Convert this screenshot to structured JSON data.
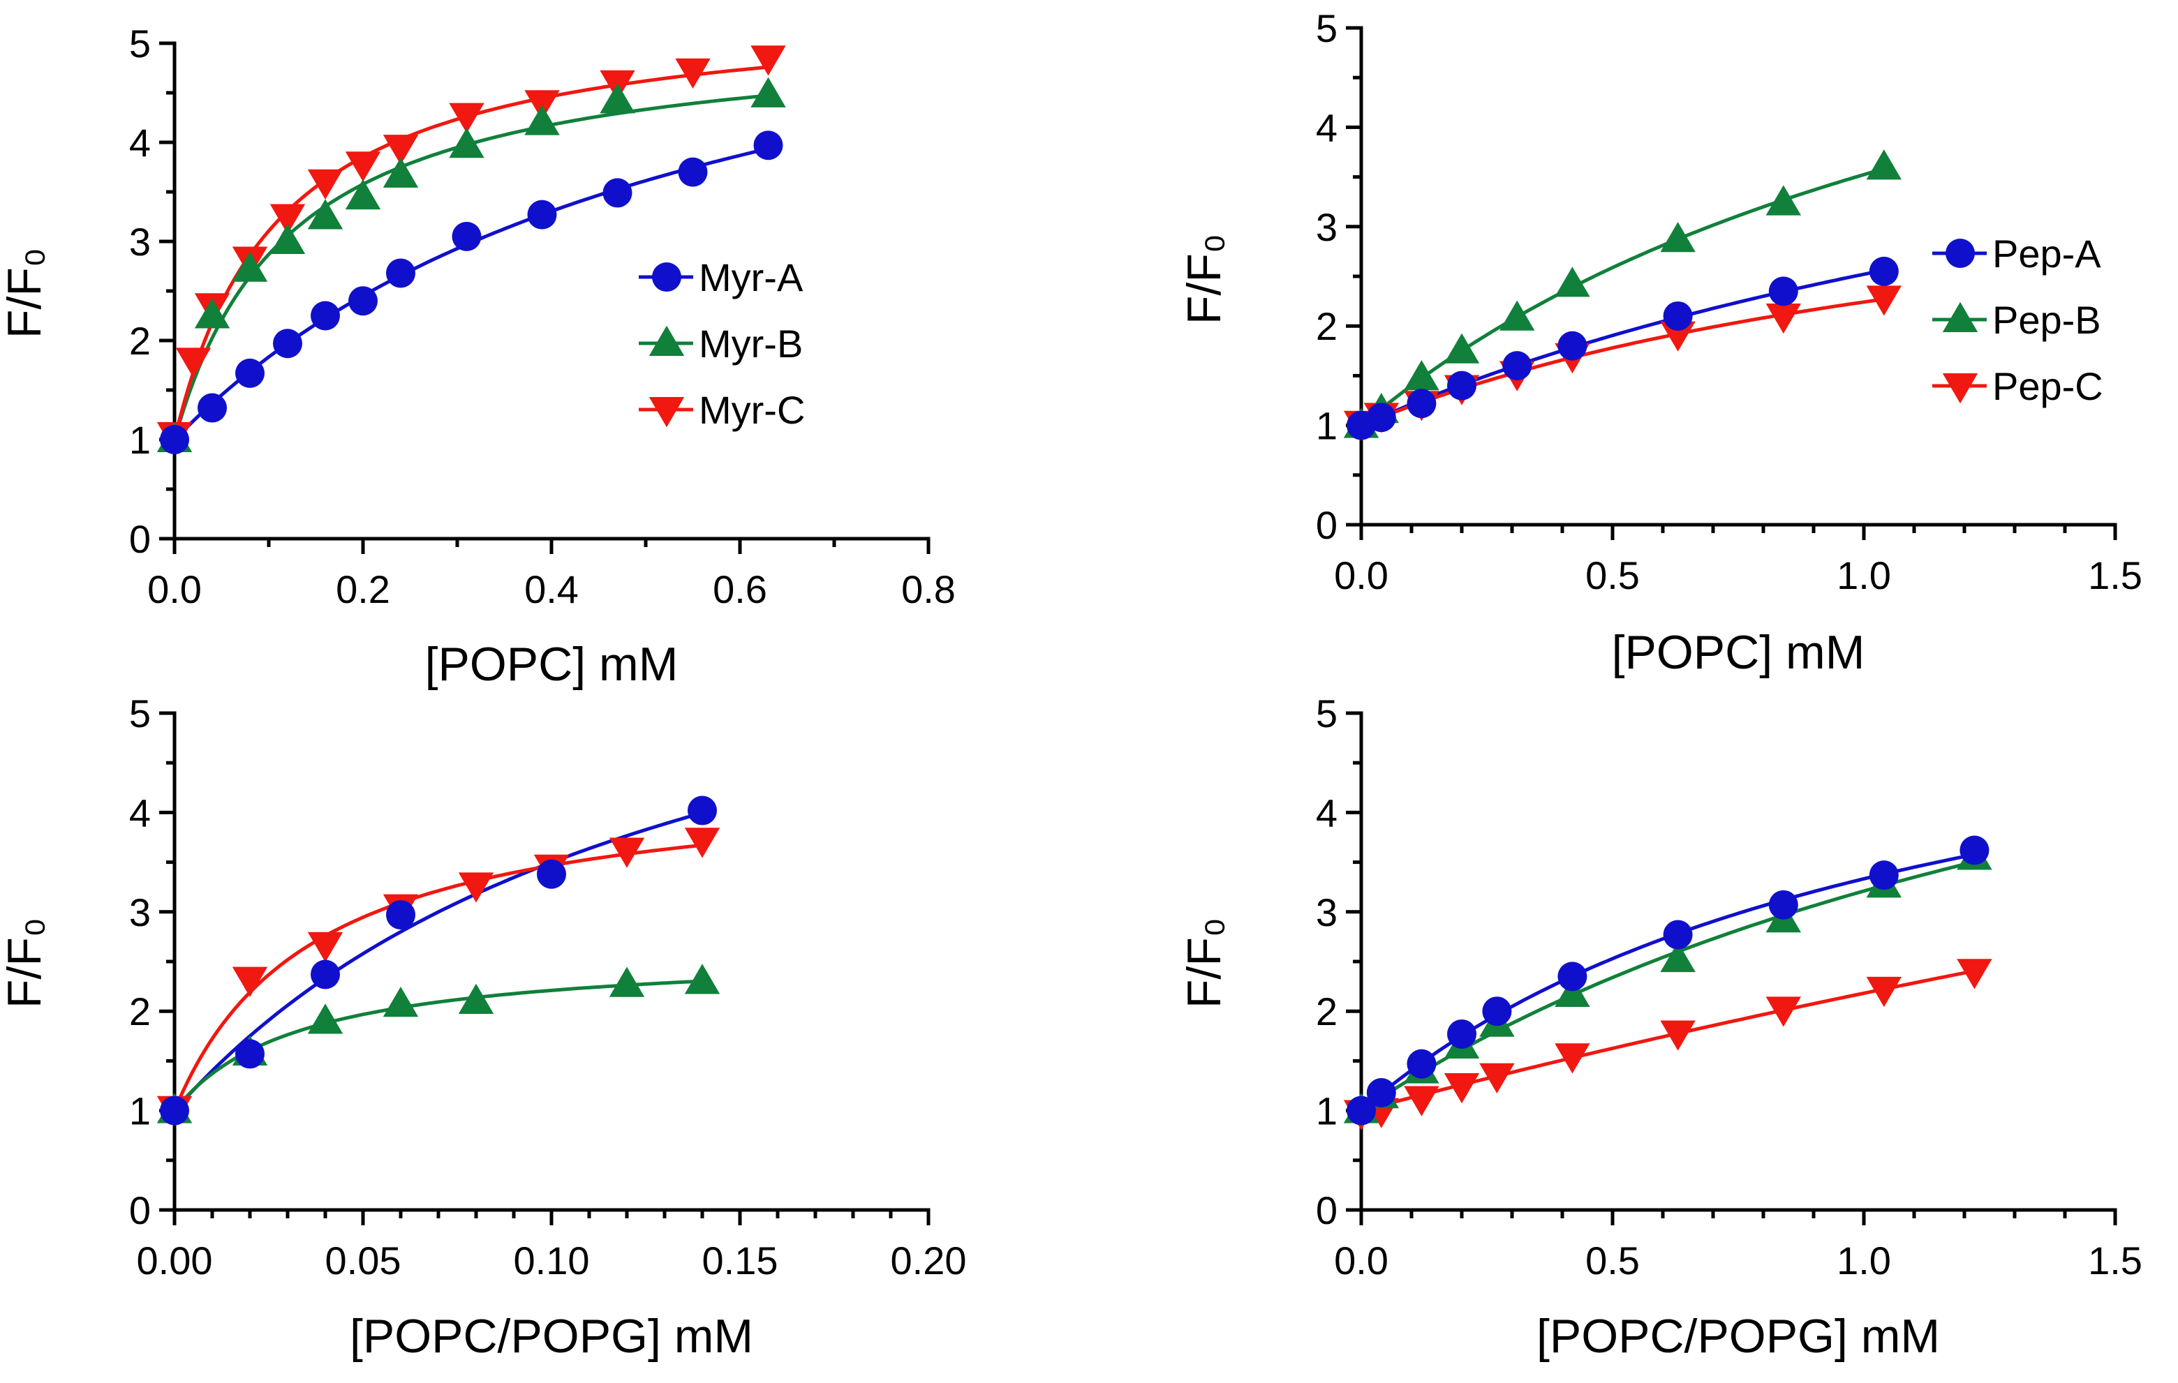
{
  "colors": {
    "A": "#1010cc",
    "B": "#10803a",
    "C": "#f01810"
  },
  "chart_data": [
    {
      "type": "scatter",
      "id": "p1",
      "xlabel": "[POPC] mM",
      "ylabel": "F/F₀",
      "xlim": [
        0,
        0.8
      ],
      "ylim": [
        0,
        5
      ],
      "xticks": [
        "0.0",
        "0.2",
        "0.4",
        "0.6",
        "0.8"
      ],
      "yticks": [
        "0",
        "1",
        "2",
        "3",
        "4",
        "5"
      ],
      "legend_position": "middle-right",
      "series": [
        {
          "name": "Myr-A",
          "color": "#1010cc",
          "marker": "circle",
          "x": [
            0,
            0.04,
            0.08,
            0.12,
            0.16,
            0.2,
            0.24,
            0.31,
            0.39,
            0.47,
            0.55,
            0.63
          ],
          "y": [
            1.0,
            1.32,
            1.67,
            1.97,
            2.25,
            2.4,
            2.68,
            3.05,
            3.27,
            3.49,
            3.7,
            3.97
          ]
        },
        {
          "name": "Myr-B",
          "color": "#10803a",
          "marker": "triangle-up",
          "x": [
            0,
            0.04,
            0.08,
            0.12,
            0.16,
            0.2,
            0.24,
            0.31,
            0.39,
            0.47,
            0.63
          ],
          "y": [
            1.0,
            2.25,
            2.72,
            3.0,
            3.25,
            3.45,
            3.67,
            3.97,
            4.2,
            4.42,
            4.48
          ]
        },
        {
          "name": "Myr-C",
          "color": "#f01810",
          "marker": "triangle-down",
          "x": [
            0,
            0.02,
            0.04,
            0.08,
            0.12,
            0.16,
            0.2,
            0.24,
            0.31,
            0.39,
            0.47,
            0.55,
            0.63
          ],
          "y": [
            1.05,
            1.8,
            2.35,
            2.82,
            3.25,
            3.6,
            3.78,
            3.95,
            4.27,
            4.4,
            4.6,
            4.72,
            4.85
          ]
        }
      ]
    },
    {
      "type": "scatter",
      "id": "p2",
      "xlabel": "[POPC] mM",
      "ylabel": "F/F₀",
      "xlim": [
        0,
        1.5
      ],
      "ylim": [
        0,
        5
      ],
      "xticks": [
        "0.0",
        "0.5",
        "1.0",
        "1.5"
      ],
      "yticks": [
        "0",
        "1",
        "2",
        "3",
        "4",
        "5"
      ],
      "legend_position": "middle-right",
      "series": [
        {
          "name": "Pep-A",
          "color": "#1010cc",
          "marker": "circle",
          "x": [
            0,
            0.04,
            0.12,
            0.2,
            0.31,
            0.42,
            0.63,
            0.84,
            1.04
          ],
          "y": [
            1.0,
            1.08,
            1.22,
            1.4,
            1.6,
            1.8,
            2.1,
            2.35,
            2.55
          ]
        },
        {
          "name": "Pep-B",
          "color": "#10803a",
          "marker": "triangle-up",
          "x": [
            0,
            0.04,
            0.12,
            0.2,
            0.31,
            0.42,
            0.63,
            0.84,
            1.04
          ],
          "y": [
            1.0,
            1.15,
            1.48,
            1.75,
            2.08,
            2.42,
            2.87,
            3.24,
            3.6
          ]
        },
        {
          "name": "Pep-C",
          "color": "#f01810",
          "marker": "triangle-down",
          "x": [
            0,
            0.04,
            0.12,
            0.2,
            0.31,
            0.42,
            0.63,
            0.84,
            1.04
          ],
          "y": [
            1.02,
            1.1,
            1.22,
            1.38,
            1.52,
            1.7,
            1.92,
            2.1,
            2.28
          ]
        }
      ]
    },
    {
      "type": "scatter",
      "id": "p3",
      "xlabel": "[POPC/POPG] mM",
      "ylabel": "F/F₀",
      "xlim": [
        0,
        0.2
      ],
      "ylim": [
        0,
        5
      ],
      "xticks": [
        "0.00",
        "0.05",
        "0.10",
        "0.15",
        "0.20"
      ],
      "yticks": [
        "0",
        "1",
        "2",
        "3",
        "4",
        "5"
      ],
      "series": [
        {
          "name": "Pep-A",
          "color": "#1010cc",
          "marker": "circle",
          "x": [
            0,
            0.02,
            0.04,
            0.06,
            0.1,
            0.14
          ],
          "y": [
            1.0,
            1.57,
            2.37,
            2.97,
            3.38,
            4.02
          ]
        },
        {
          "name": "Pep-B",
          "color": "#10803a",
          "marker": "triangle-up",
          "x": [
            0,
            0.02,
            0.04,
            0.06,
            0.08,
            0.12,
            0.14
          ],
          "y": [
            1.0,
            1.58,
            1.9,
            2.07,
            2.1,
            2.27,
            2.3
          ]
        },
        {
          "name": "Pep-C",
          "color": "#f01810",
          "marker": "triangle-down",
          "x": [
            0,
            0.02,
            0.04,
            0.06,
            0.08,
            0.1,
            0.12,
            0.14
          ],
          "y": [
            1.02,
            2.32,
            2.67,
            3.05,
            3.27,
            3.45,
            3.62,
            3.72
          ]
        }
      ]
    },
    {
      "type": "scatter",
      "id": "p4",
      "xlabel": "[POPC/POPG] mM",
      "ylabel": "F/F₀",
      "xlim": [
        0,
        1.5
      ],
      "ylim": [
        0,
        5
      ],
      "xticks": [
        "0.0",
        "0.5",
        "1.0",
        "1.5"
      ],
      "yticks": [
        "0",
        "1",
        "2",
        "3",
        "4",
        "5"
      ],
      "series": [
        {
          "name": "Pep-A",
          "color": "#1010cc",
          "marker": "circle",
          "x": [
            0,
            0.04,
            0.12,
            0.2,
            0.27,
            0.42,
            0.63,
            0.84,
            1.04,
            1.22
          ],
          "y": [
            1.0,
            1.18,
            1.47,
            1.77,
            2.0,
            2.35,
            2.77,
            3.07,
            3.37,
            3.62
          ]
        },
        {
          "name": "Pep-B",
          "color": "#10803a",
          "marker": "triangle-up",
          "x": [
            0,
            0.04,
            0.12,
            0.2,
            0.27,
            0.42,
            0.63,
            0.84,
            1.04,
            1.22
          ],
          "y": [
            1.0,
            1.15,
            1.4,
            1.65,
            1.87,
            2.17,
            2.52,
            2.92,
            3.27,
            3.55
          ]
        },
        {
          "name": "Pep-C",
          "color": "#f01810",
          "marker": "triangle-down",
          "x": [
            0,
            0.04,
            0.12,
            0.2,
            0.27,
            0.42,
            0.63,
            0.84,
            1.04,
            1.22
          ],
          "y": [
            0.98,
            1.0,
            1.12,
            1.25,
            1.35,
            1.55,
            1.78,
            2.02,
            2.22,
            2.4
          ]
        }
      ]
    }
  ]
}
